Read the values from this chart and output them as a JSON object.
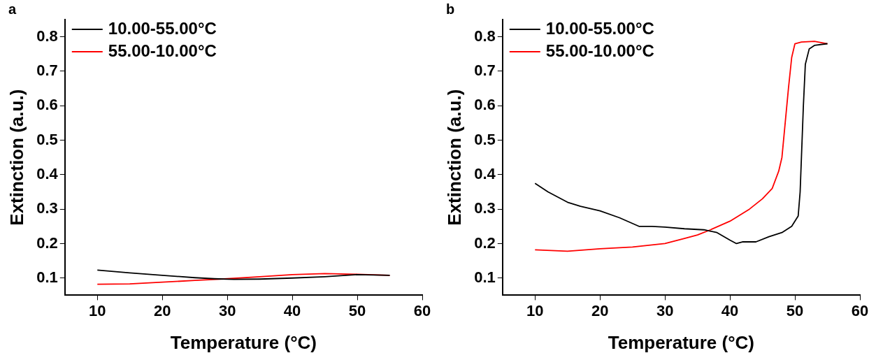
{
  "chart_data": [
    {
      "type": "line",
      "title": "a",
      "xlabel": "Temperature (°C)",
      "ylabel": "Extinction (a.u.)",
      "xlim": [
        5,
        60
      ],
      "ylim": [
        0.05,
        0.85
      ],
      "xticks": [
        10,
        20,
        30,
        40,
        50,
        60
      ],
      "yticks": [
        0.1,
        0.2,
        0.3,
        0.4,
        0.5,
        0.6,
        0.7,
        0.8
      ],
      "grid": false,
      "legend": "top left",
      "marker": "none",
      "line_style": "solid",
      "series": [
        {
          "name": "10.00-55.00°C",
          "color": "#000000",
          "x": [
            10,
            15,
            20,
            25,
            28,
            31,
            35,
            40,
            45,
            50,
            55
          ],
          "values": [
            0.123,
            0.115,
            0.108,
            0.101,
            0.098,
            0.096,
            0.097,
            0.1,
            0.104,
            0.11,
            0.108
          ]
        },
        {
          "name": "55.00-10.00°C",
          "color": "#ff0000",
          "x": [
            10,
            15,
            20,
            25,
            30,
            35,
            40,
            45,
            50,
            55
          ],
          "values": [
            0.082,
            0.083,
            0.088,
            0.093,
            0.098,
            0.104,
            0.11,
            0.113,
            0.111,
            0.108
          ]
        }
      ]
    },
    {
      "type": "line",
      "title": "b",
      "xlabel": "Temperature (°C)",
      "ylabel": "Extinction (a.u.)",
      "xlim": [
        5,
        60
      ],
      "ylim": [
        0.05,
        0.85
      ],
      "xticks": [
        10,
        20,
        30,
        40,
        50,
        60
      ],
      "yticks": [
        0.1,
        0.2,
        0.3,
        0.4,
        0.5,
        0.6,
        0.7,
        0.8
      ],
      "grid": false,
      "legend": "top left",
      "marker": "none",
      "line_style": "solid",
      "series": [
        {
          "name": "10.00-55.00°C",
          "color": "#000000",
          "x": [
            10,
            12,
            15,
            17,
            20,
            23,
            26,
            28,
            30,
            33,
            36,
            38,
            40,
            41,
            42,
            44,
            46,
            48,
            49.5,
            50.5,
            50.8,
            51,
            51.3,
            51.6,
            52.2,
            53,
            55
          ],
          "values": [
            0.375,
            0.35,
            0.32,
            0.308,
            0.295,
            0.275,
            0.25,
            0.25,
            0.248,
            0.243,
            0.24,
            0.232,
            0.21,
            0.2,
            0.205,
            0.205,
            0.22,
            0.232,
            0.25,
            0.28,
            0.35,
            0.45,
            0.6,
            0.72,
            0.765,
            0.775,
            0.78
          ]
        },
        {
          "name": "55.00-10.00°C",
          "color": "#ff0000",
          "x": [
            10,
            15,
            20,
            25,
            30,
            33,
            35,
            37,
            40,
            43,
            45,
            46.5,
            47.5,
            48,
            48.5,
            49,
            49.5,
            50,
            51,
            53,
            55
          ],
          "values": [
            0.182,
            0.178,
            0.185,
            0.19,
            0.2,
            0.215,
            0.225,
            0.24,
            0.265,
            0.3,
            0.33,
            0.36,
            0.41,
            0.45,
            0.55,
            0.65,
            0.74,
            0.78,
            0.785,
            0.787,
            0.78
          ]
        }
      ]
    }
  ]
}
